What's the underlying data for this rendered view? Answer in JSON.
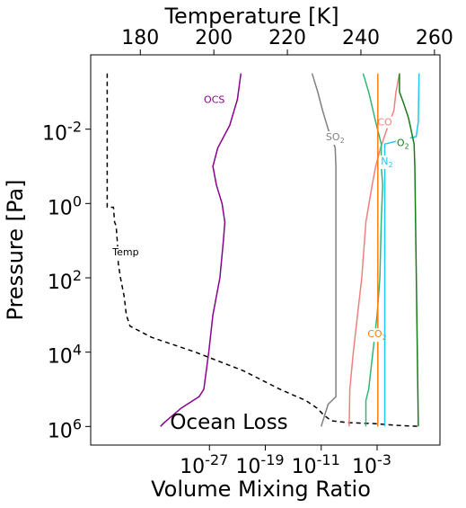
{
  "chart_data": {
    "type": "line",
    "title": "",
    "annotation": "Ocean Loss",
    "xlabel": "Volume Mixing Ratio",
    "x2label": "Temperature [K]",
    "ylabel": "Pressure [Pa]",
    "xscale": "log",
    "yscale": "log",
    "yinverted": true,
    "xlim_log10": [
      -44,
      6
    ],
    "x2lim": [
      166.5,
      261.5
    ],
    "ylim_log10": [
      6.5,
      -4
    ],
    "xticks": [
      {
        "log10": -27,
        "label": "10^-27"
      },
      {
        "log10": -19,
        "label": "10^-19"
      },
      {
        "log10": -11,
        "label": "10^-11"
      },
      {
        "log10": -3,
        "label": "10^-3"
      }
    ],
    "x2ticks": [
      180,
      200,
      220,
      240,
      260
    ],
    "yticks": [
      {
        "log10": -2,
        "label": "10^-2"
      },
      {
        "log10": 0,
        "label": "10^0"
      },
      {
        "log10": 2,
        "label": "10^2"
      },
      {
        "log10": 4,
        "label": "10^4"
      },
      {
        "log10": 6,
        "label": "10^6"
      }
    ],
    "grid": false,
    "legend": "none",
    "series": [
      {
        "name": "Temp",
        "axis": "temperature",
        "color": "#000000",
        "dash": "dashed",
        "label_at": {
          "x": 176,
          "y": 1.4
        },
        "points": [
          [
            171,
            -3.5
          ],
          [
            171,
            0.1
          ],
          [
            172.7,
            0.1
          ],
          [
            173,
            0.5
          ],
          [
            173.4,
            0.6
          ],
          [
            173.8,
            1.1
          ],
          [
            174,
            1.6
          ],
          [
            174.6,
            2
          ],
          [
            175.6,
            2.5
          ],
          [
            176.2,
            3
          ],
          [
            177.2,
            3.3
          ],
          [
            183,
            3.6
          ],
          [
            195,
            4
          ],
          [
            208,
            4.5
          ],
          [
            218,
            5
          ],
          [
            225,
            5.3
          ],
          [
            228,
            5.5
          ],
          [
            229,
            5.6
          ],
          [
            230,
            5.7
          ],
          [
            232,
            5.85
          ],
          [
            237,
            5.9
          ],
          [
            243,
            5.92
          ],
          [
            250,
            5.97
          ],
          [
            256,
            6
          ]
        ]
      },
      {
        "name": "OCS",
        "axis": "vmr",
        "color": "#8b008b",
        "label_at": {
          "x": -26.3,
          "y": -2.7
        },
        "points": [
          [
            -22.5,
            -3.5
          ],
          [
            -23,
            -2.8
          ],
          [
            -24.1,
            -2.1
          ],
          [
            -25.8,
            -1.5
          ],
          [
            -26.5,
            -1
          ],
          [
            -26,
            -0.5
          ],
          [
            -25.2,
            0
          ],
          [
            -24.8,
            0.5
          ],
          [
            -25,
            1
          ],
          [
            -25.5,
            2
          ],
          [
            -26.5,
            3
          ],
          [
            -27.1,
            4
          ],
          [
            -27.8,
            5
          ],
          [
            -28.5,
            5.2
          ],
          [
            -31,
            5.5
          ],
          [
            -33.5,
            5.9
          ],
          [
            -34,
            6
          ]
        ]
      },
      {
        "name": "SO2",
        "axis": "vmr",
        "color": "#808080",
        "label_at": {
          "x": -9,
          "y": -1.7
        },
        "points": [
          [
            -12.3,
            -3.5
          ],
          [
            -11.5,
            -3
          ],
          [
            -10.8,
            -2.5
          ],
          [
            -10,
            -2
          ],
          [
            -9,
            -1.5
          ],
          [
            -8.9,
            -1
          ],
          [
            -8.9,
            5.2
          ],
          [
            -10,
            5.4
          ],
          [
            -10.5,
            5.7
          ],
          [
            -11,
            6
          ]
        ]
      },
      {
        "name": "CO",
        "axis": "vmr",
        "color": "#f08080",
        "label_at": {
          "x": -1.9,
          "y": -2.1
        },
        "points": [
          [
            0.2,
            -3.5
          ],
          [
            -0.3,
            -3
          ],
          [
            -0.6,
            -2.5
          ],
          [
            -1.6,
            -2
          ],
          [
            -2.5,
            -1.5
          ],
          [
            -3.2,
            -1
          ],
          [
            -3.7,
            -0.5
          ],
          [
            -4.6,
            0.5
          ],
          [
            -5.2,
            2
          ],
          [
            -5.8,
            3
          ],
          [
            -6.4,
            4
          ],
          [
            -6.9,
            5
          ],
          [
            -7,
            6
          ]
        ]
      },
      {
        "name": "",
        "axis": "vmr",
        "color": "#2eb872",
        "points": [
          [
            -5,
            -3.5
          ],
          [
            -4.2,
            -3
          ],
          [
            -3.2,
            -2.2
          ],
          [
            -2.4,
            -1.6
          ],
          [
            -2.4,
            -1
          ],
          [
            -2.2,
            -0.5
          ],
          [
            -2.4,
            0.5
          ],
          [
            -2.6,
            2
          ],
          [
            -3,
            3
          ],
          [
            -3.6,
            4
          ],
          [
            -4.2,
            5
          ],
          [
            -4.6,
            5.3
          ],
          [
            -4.6,
            6
          ]
        ]
      },
      {
        "name": "CO2",
        "axis": "vmr",
        "color": "#ff7f0e",
        "label_at": {
          "x": -3,
          "y": 3.6
        },
        "points": [
          [
            -2.9,
            -3.5
          ],
          [
            -2.9,
            6
          ]
        ]
      },
      {
        "name": "N2",
        "axis": "vmr",
        "color": "#1ec8f0",
        "label_at": {
          "x": -1.6,
          "y": -1.05
        },
        "points": [
          [
            3,
            -3.5
          ],
          [
            2.9,
            -2.2
          ],
          [
            2.6,
            -1.8
          ],
          [
            -1.9,
            -1.6
          ],
          [
            -1.9,
            6
          ]
        ]
      },
      {
        "name": "O2",
        "axis": "vmr",
        "color": "#1a7a1a",
        "label_at": {
          "x": 0.7,
          "y": -1.55
        },
        "points": [
          [
            0.2,
            -3.5
          ],
          [
            0.2,
            -3
          ],
          [
            0.8,
            -2.7
          ],
          [
            1.5,
            -2.3
          ],
          [
            2.3,
            -1.6
          ],
          [
            2.4,
            -1
          ],
          [
            2.9,
            6
          ]
        ]
      }
    ]
  }
}
